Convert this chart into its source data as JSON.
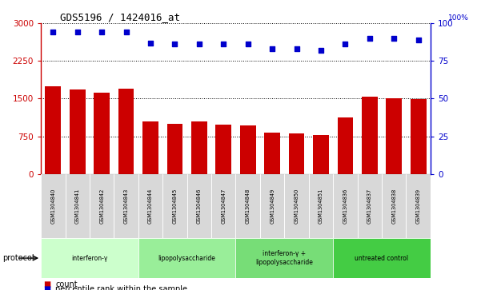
{
  "title": "GDS5196 / 1424016_at",
  "samples": [
    "GSM1304840",
    "GSM1304841",
    "GSM1304842",
    "GSM1304843",
    "GSM1304844",
    "GSM1304845",
    "GSM1304846",
    "GSM1304847",
    "GSM1304848",
    "GSM1304849",
    "GSM1304850",
    "GSM1304851",
    "GSM1304836",
    "GSM1304837",
    "GSM1304838",
    "GSM1304839"
  ],
  "counts": [
    1750,
    1680,
    1620,
    1700,
    1050,
    1000,
    1050,
    990,
    960,
    820,
    800,
    770,
    1120,
    1540,
    1510,
    1490
  ],
  "percentile_ranks": [
    94,
    94,
    94,
    94,
    87,
    86,
    86,
    86,
    86,
    83,
    83,
    82,
    86,
    90,
    90,
    89
  ],
  "ylim_left": [
    0,
    3000
  ],
  "ylim_right": [
    0,
    100
  ],
  "yticks_left": [
    0,
    750,
    1500,
    2250,
    3000
  ],
  "yticks_right": [
    0,
    25,
    50,
    75,
    100
  ],
  "bar_color": "#cc0000",
  "dot_color": "#0000cc",
  "groups": [
    {
      "label": "interferon-γ",
      "start": 0,
      "end": 4,
      "color": "#ccffcc"
    },
    {
      "label": "lipopolysaccharide",
      "start": 4,
      "end": 8,
      "color": "#99ee99"
    },
    {
      "label": "interferon-γ +\nlipopolysaccharide",
      "start": 8,
      "end": 12,
      "color": "#77dd77"
    },
    {
      "label": "untreated control",
      "start": 12,
      "end": 16,
      "color": "#44cc44"
    }
  ],
  "sample_cell_color": "#d8d8d8",
  "legend_count_label": "count",
  "legend_percentile_label": "percentile rank within the sample",
  "left_axis_color": "#cc0000",
  "right_axis_color": "#0000cc",
  "protocol_label": "protocol"
}
